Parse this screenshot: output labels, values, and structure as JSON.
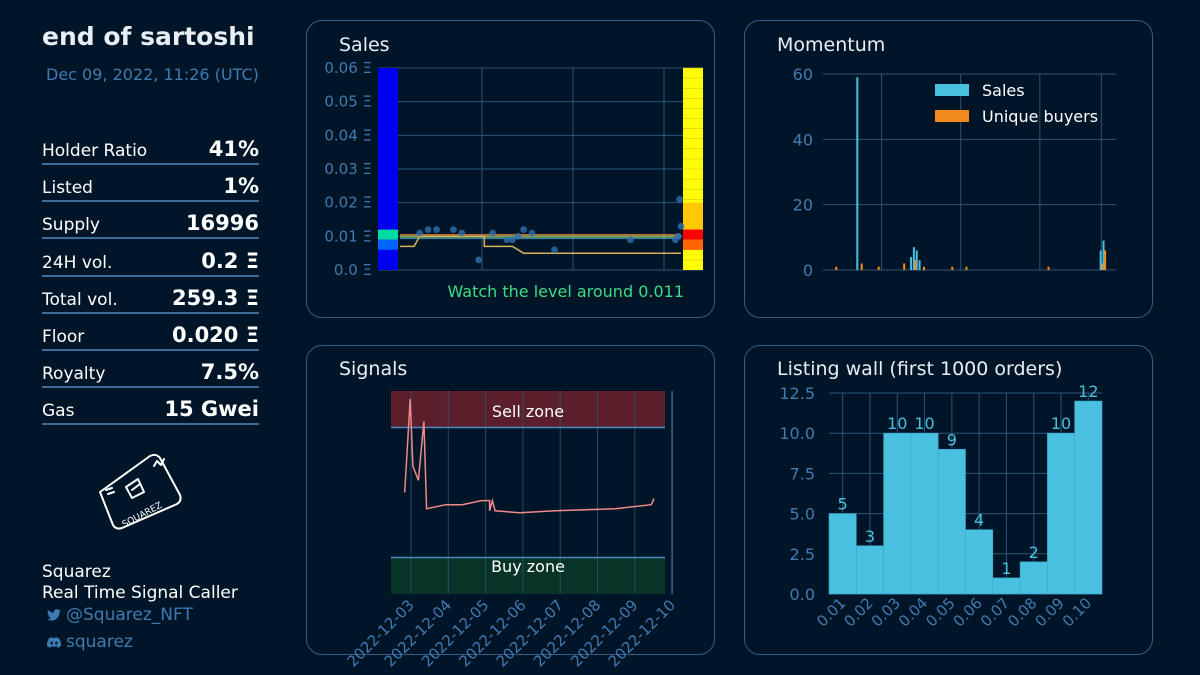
{
  "collection": {
    "title": "end of sartoshi",
    "date": "Dec 09, 2022, 11:26 (UTC)"
  },
  "stats": [
    {
      "label": "Holder Ratio",
      "value": "41%"
    },
    {
      "label": "Listed",
      "value": "1%"
    },
    {
      "label": "Supply",
      "value": "16996"
    },
    {
      "label": "24H vol.",
      "value": "0.2 Ξ"
    },
    {
      "label": "Total vol.",
      "value": "259.3 Ξ"
    },
    {
      "label": "Floor",
      "value": "0.020 Ξ"
    },
    {
      "label": "Royalty",
      "value": "7.5%"
    },
    {
      "label": "Gas",
      "value": "15 Gwei"
    }
  ],
  "brand": {
    "name": "Squarez",
    "tagline": "Real Time Signal Caller",
    "twitter": "@Squarez_NFT",
    "discord": "squarez",
    "logo_text": "SQUAREZ"
  },
  "colors": {
    "background": "#001628",
    "accent": "#4ac0e0",
    "orange": "#f28b1c",
    "green_text": "#3ddc84",
    "sell_zone": "#5b1f2c",
    "buy_zone": "#083427"
  },
  "chart_data": [
    {
      "type": "scatter",
      "title": "Sales",
      "y_ticks": [
        "0.0 Ξ",
        "0.01 Ξ",
        "0.02 Ξ",
        "0.03 Ξ",
        "0.04 Ξ",
        "0.05 Ξ",
        "0.06 Ξ"
      ],
      "ylim": [
        0,
        0.06
      ],
      "annotation": "Watch the level around 0.011",
      "points": [
        [
          0.07,
          0.011
        ],
        [
          0.1,
          0.012
        ],
        [
          0.13,
          0.012
        ],
        [
          0.19,
          0.012
        ],
        [
          0.22,
          0.011
        ],
        [
          0.28,
          0.003
        ],
        [
          0.33,
          0.011
        ],
        [
          0.38,
          0.009
        ],
        [
          0.4,
          0.009
        ],
        [
          0.42,
          0.01
        ],
        [
          0.44,
          0.012
        ],
        [
          0.47,
          0.011
        ],
        [
          0.55,
          0.006
        ],
        [
          0.82,
          0.009
        ],
        [
          0.98,
          0.009
        ],
        [
          0.99,
          0.01
        ],
        [
          1.0,
          0.013
        ],
        [
          0.995,
          0.021
        ]
      ],
      "line": [
        [
          0.0,
          0.007
        ],
        [
          0.05,
          0.007
        ],
        [
          0.07,
          0.01
        ],
        [
          0.3,
          0.01
        ],
        [
          0.3,
          0.007
        ],
        [
          0.4,
          0.007
        ],
        [
          0.44,
          0.005
        ],
        [
          1.0,
          0.005
        ]
      ]
    },
    {
      "type": "bar",
      "title": "Momentum",
      "y_ticks": [
        "0",
        "20",
        "40",
        "60"
      ],
      "ylim": [
        0,
        60
      ],
      "series": [
        {
          "name": "Sales",
          "bars": [
            [
              0.1,
              59
            ],
            [
              0.29,
              4
            ],
            [
              0.3,
              7
            ],
            [
              0.31,
              6
            ],
            [
              0.32,
              3
            ],
            [
              0.96,
              6
            ],
            [
              0.97,
              9
            ]
          ]
        },
        {
          "name": "Unique buyers",
          "bars": [
            [
              0.02,
              1
            ],
            [
              0.11,
              2
            ],
            [
              0.17,
              1
            ],
            [
              0.26,
              2
            ],
            [
              0.3,
              3
            ],
            [
              0.33,
              1
            ],
            [
              0.43,
              1
            ],
            [
              0.48,
              1
            ],
            [
              0.77,
              1
            ],
            [
              0.96,
              2
            ],
            [
              0.97,
              6
            ]
          ]
        }
      ]
    },
    {
      "type": "line",
      "title": "Signals",
      "x_ticks": [
        "2022-12-03",
        "2022-12-04",
        "2022-12-05",
        "2022-12-06",
        "2022-12-07",
        "2022-12-08",
        "2022-12-09",
        "2022-12-10"
      ],
      "zones": [
        "Sell zone",
        "Buy zone"
      ],
      "sell_threshold": 0.82,
      "buy_threshold": 0.18,
      "values": [
        [
          0.05,
          0.5
        ],
        [
          0.07,
          0.96
        ],
        [
          0.08,
          0.63
        ],
        [
          0.1,
          0.56
        ],
        [
          0.12,
          0.85
        ],
        [
          0.13,
          0.42
        ],
        [
          0.2,
          0.44
        ],
        [
          0.26,
          0.44
        ],
        [
          0.33,
          0.46
        ],
        [
          0.36,
          0.46
        ],
        [
          0.36,
          0.41
        ],
        [
          0.37,
          0.46
        ],
        [
          0.38,
          0.41
        ],
        [
          0.47,
          0.4
        ],
        [
          0.6,
          0.41
        ],
        [
          0.82,
          0.42
        ],
        [
          0.95,
          0.44
        ],
        [
          0.96,
          0.47
        ]
      ]
    },
    {
      "type": "bar",
      "title": "Listing wall (first 1000 orders)",
      "categories": [
        "0.01",
        "0.02",
        "0.03",
        "0.04",
        "0.05",
        "0.06",
        "0.07",
        "0.08",
        "0.09",
        "0.10"
      ],
      "values": [
        5,
        3,
        10,
        10,
        9,
        4,
        1,
        2,
        10,
        12
      ],
      "y_ticks": [
        "0.0",
        "2.5",
        "5.0",
        "7.5",
        "10.0",
        "12.5"
      ],
      "ylim": [
        0,
        12.5
      ]
    }
  ]
}
